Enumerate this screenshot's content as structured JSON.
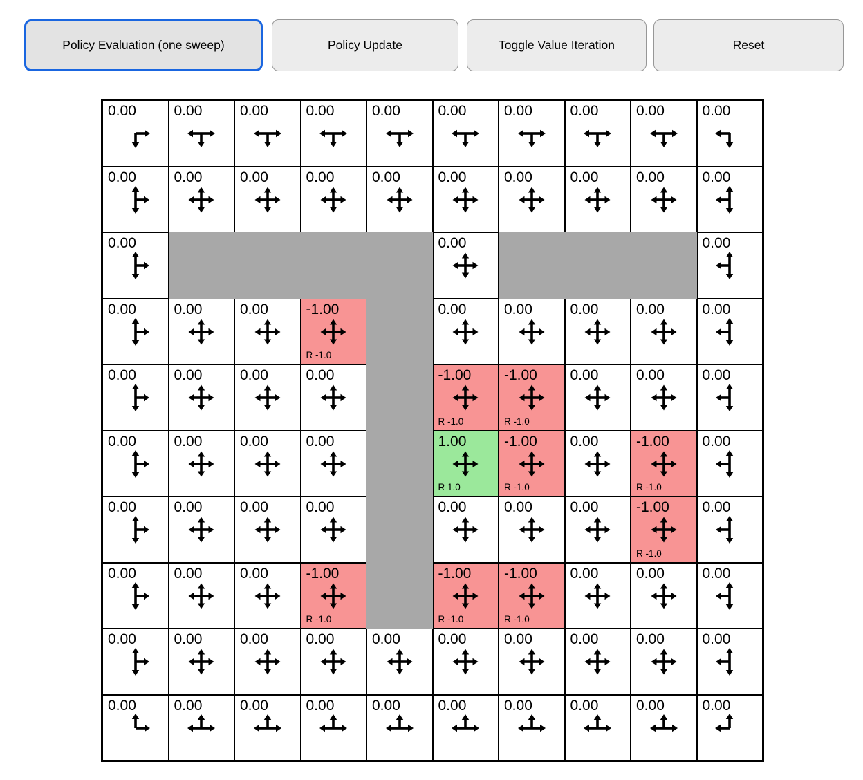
{
  "toolbar": {
    "buttons": [
      {
        "label": "Policy Evaluation (one sweep)",
        "active": true
      },
      {
        "label": "Policy Update",
        "active": false
      },
      {
        "label": "Toggle Value Iteration",
        "active": false
      },
      {
        "label": "Reset",
        "active": false
      }
    ]
  },
  "colors": {
    "accent_blue": "#1a66e0",
    "wall_gray": "#a8a8a8",
    "negative_red": "#f89494",
    "positive_green": "#9be89b",
    "button_bg": "#ececec",
    "button_bg_active": "#e3e3e3",
    "button_border": "#979797"
  },
  "grid": {
    "rows": 10,
    "cols": 10,
    "cells": [
      {
        "v": "0.00",
        "t": "n",
        "d": [
          "r",
          "d"
        ]
      },
      {
        "v": "0.00",
        "t": "n",
        "d": [
          "l",
          "r",
          "d"
        ]
      },
      {
        "v": "0.00",
        "t": "n",
        "d": [
          "l",
          "r",
          "d"
        ]
      },
      {
        "v": "0.00",
        "t": "n",
        "d": [
          "l",
          "r",
          "d"
        ]
      },
      {
        "v": "0.00",
        "t": "n",
        "d": [
          "l",
          "r",
          "d"
        ]
      },
      {
        "v": "0.00",
        "t": "n",
        "d": [
          "l",
          "r",
          "d"
        ]
      },
      {
        "v": "0.00",
        "t": "n",
        "d": [
          "l",
          "r",
          "d"
        ]
      },
      {
        "v": "0.00",
        "t": "n",
        "d": [
          "l",
          "r",
          "d"
        ]
      },
      {
        "v": "0.00",
        "t": "n",
        "d": [
          "l",
          "r",
          "d"
        ]
      },
      {
        "v": "0.00",
        "t": "n",
        "d": [
          "l",
          "d"
        ]
      },
      {
        "v": "0.00",
        "t": "n",
        "d": [
          "u",
          "d",
          "r"
        ]
      },
      {
        "v": "0.00",
        "t": "n",
        "d": [
          "u",
          "d",
          "l",
          "r"
        ]
      },
      {
        "v": "0.00",
        "t": "n",
        "d": [
          "u",
          "d",
          "l",
          "r"
        ]
      },
      {
        "v": "0.00",
        "t": "n",
        "d": [
          "u",
          "d",
          "l",
          "r"
        ]
      },
      {
        "v": "0.00",
        "t": "n",
        "d": [
          "u",
          "d",
          "l",
          "r"
        ]
      },
      {
        "v": "0.00",
        "t": "n",
        "d": [
          "u",
          "d",
          "l",
          "r"
        ]
      },
      {
        "v": "0.00",
        "t": "n",
        "d": [
          "u",
          "d",
          "l",
          "r"
        ]
      },
      {
        "v": "0.00",
        "t": "n",
        "d": [
          "u",
          "d",
          "l",
          "r"
        ]
      },
      {
        "v": "0.00",
        "t": "n",
        "d": [
          "u",
          "d",
          "l",
          "r"
        ]
      },
      {
        "v": "0.00",
        "t": "n",
        "d": [
          "u",
          "d",
          "l"
        ]
      },
      {
        "v": "0.00",
        "t": "n",
        "d": [
          "u",
          "d",
          "r"
        ]
      },
      {
        "t": "wall"
      },
      {
        "t": "wall"
      },
      {
        "t": "wall"
      },
      {
        "t": "wall"
      },
      {
        "v": "0.00",
        "t": "n",
        "d": [
          "u",
          "d",
          "l",
          "r"
        ]
      },
      {
        "t": "wall"
      },
      {
        "t": "wall"
      },
      {
        "t": "wall"
      },
      {
        "v": "0.00",
        "t": "n",
        "d": [
          "u",
          "d",
          "l"
        ]
      },
      {
        "v": "0.00",
        "t": "n",
        "d": [
          "u",
          "d",
          "r"
        ]
      },
      {
        "v": "0.00",
        "t": "n",
        "d": [
          "u",
          "d",
          "l",
          "r"
        ]
      },
      {
        "v": "0.00",
        "t": "n",
        "d": [
          "u",
          "d",
          "l",
          "r"
        ]
      },
      {
        "v": "-1.00",
        "t": "neg",
        "d": [
          "u",
          "d",
          "l",
          "r"
        ],
        "rw": "R -1.0"
      },
      {
        "t": "wall"
      },
      {
        "v": "0.00",
        "t": "n",
        "d": [
          "u",
          "d",
          "l",
          "r"
        ]
      },
      {
        "v": "0.00",
        "t": "n",
        "d": [
          "u",
          "d",
          "l",
          "r"
        ]
      },
      {
        "v": "0.00",
        "t": "n",
        "d": [
          "u",
          "d",
          "l",
          "r"
        ]
      },
      {
        "v": "0.00",
        "t": "n",
        "d": [
          "u",
          "d",
          "l",
          "r"
        ]
      },
      {
        "v": "0.00",
        "t": "n",
        "d": [
          "u",
          "d",
          "l"
        ]
      },
      {
        "v": "0.00",
        "t": "n",
        "d": [
          "u",
          "d",
          "r"
        ]
      },
      {
        "v": "0.00",
        "t": "n",
        "d": [
          "u",
          "d",
          "l",
          "r"
        ]
      },
      {
        "v": "0.00",
        "t": "n",
        "d": [
          "u",
          "d",
          "l",
          "r"
        ]
      },
      {
        "v": "0.00",
        "t": "n",
        "d": [
          "u",
          "d",
          "l",
          "r"
        ]
      },
      {
        "t": "wall"
      },
      {
        "v": "-1.00",
        "t": "neg",
        "d": [
          "u",
          "d",
          "l",
          "r"
        ],
        "rw": "R -1.0"
      },
      {
        "v": "-1.00",
        "t": "neg",
        "d": [
          "u",
          "d",
          "l",
          "r"
        ],
        "rw": "R -1.0"
      },
      {
        "v": "0.00",
        "t": "n",
        "d": [
          "u",
          "d",
          "l",
          "r"
        ]
      },
      {
        "v": "0.00",
        "t": "n",
        "d": [
          "u",
          "d",
          "l",
          "r"
        ]
      },
      {
        "v": "0.00",
        "t": "n",
        "d": [
          "u",
          "d",
          "l"
        ]
      },
      {
        "v": "0.00",
        "t": "n",
        "d": [
          "u",
          "d",
          "r"
        ]
      },
      {
        "v": "0.00",
        "t": "n",
        "d": [
          "u",
          "d",
          "l",
          "r"
        ]
      },
      {
        "v": "0.00",
        "t": "n",
        "d": [
          "u",
          "d",
          "l",
          "r"
        ]
      },
      {
        "v": "0.00",
        "t": "n",
        "d": [
          "u",
          "d",
          "l",
          "r"
        ]
      },
      {
        "t": "wall"
      },
      {
        "v": "1.00",
        "t": "pos",
        "d": [
          "u",
          "d",
          "l",
          "r"
        ],
        "rw": "R 1.0"
      },
      {
        "v": "-1.00",
        "t": "neg",
        "d": [
          "u",
          "d",
          "l",
          "r"
        ],
        "rw": "R -1.0"
      },
      {
        "v": "0.00",
        "t": "n",
        "d": [
          "u",
          "d",
          "l",
          "r"
        ]
      },
      {
        "v": "-1.00",
        "t": "neg",
        "d": [
          "u",
          "d",
          "l",
          "r"
        ],
        "rw": "R -1.0"
      },
      {
        "v": "0.00",
        "t": "n",
        "d": [
          "u",
          "d",
          "l"
        ]
      },
      {
        "v": "0.00",
        "t": "n",
        "d": [
          "u",
          "d",
          "r"
        ]
      },
      {
        "v": "0.00",
        "t": "n",
        "d": [
          "u",
          "d",
          "l",
          "r"
        ]
      },
      {
        "v": "0.00",
        "t": "n",
        "d": [
          "u",
          "d",
          "l",
          "r"
        ]
      },
      {
        "v": "0.00",
        "t": "n",
        "d": [
          "u",
          "d",
          "l",
          "r"
        ]
      },
      {
        "t": "wall"
      },
      {
        "v": "0.00",
        "t": "n",
        "d": [
          "u",
          "d",
          "l",
          "r"
        ]
      },
      {
        "v": "0.00",
        "t": "n",
        "d": [
          "u",
          "d",
          "l",
          "r"
        ]
      },
      {
        "v": "0.00",
        "t": "n",
        "d": [
          "u",
          "d",
          "l",
          "r"
        ]
      },
      {
        "v": "-1.00",
        "t": "neg",
        "d": [
          "u",
          "d",
          "l",
          "r"
        ],
        "rw": "R -1.0"
      },
      {
        "v": "0.00",
        "t": "n",
        "d": [
          "u",
          "d",
          "l"
        ]
      },
      {
        "v": "0.00",
        "t": "n",
        "d": [
          "u",
          "d",
          "r"
        ]
      },
      {
        "v": "0.00",
        "t": "n",
        "d": [
          "u",
          "d",
          "l",
          "r"
        ]
      },
      {
        "v": "0.00",
        "t": "n",
        "d": [
          "u",
          "d",
          "l",
          "r"
        ]
      },
      {
        "v": "-1.00",
        "t": "neg",
        "d": [
          "u",
          "d",
          "l",
          "r"
        ],
        "rw": "R -1.0"
      },
      {
        "t": "wall"
      },
      {
        "v": "-1.00",
        "t": "neg",
        "d": [
          "u",
          "d",
          "l",
          "r"
        ],
        "rw": "R -1.0"
      },
      {
        "v": "-1.00",
        "t": "neg",
        "d": [
          "u",
          "d",
          "l",
          "r"
        ],
        "rw": "R -1.0"
      },
      {
        "v": "0.00",
        "t": "n",
        "d": [
          "u",
          "d",
          "l",
          "r"
        ]
      },
      {
        "v": "0.00",
        "t": "n",
        "d": [
          "u",
          "d",
          "l",
          "r"
        ]
      },
      {
        "v": "0.00",
        "t": "n",
        "d": [
          "u",
          "d",
          "l"
        ]
      },
      {
        "v": "0.00",
        "t": "n",
        "d": [
          "u",
          "d",
          "r"
        ]
      },
      {
        "v": "0.00",
        "t": "n",
        "d": [
          "u",
          "d",
          "l",
          "r"
        ]
      },
      {
        "v": "0.00",
        "t": "n",
        "d": [
          "u",
          "d",
          "l",
          "r"
        ]
      },
      {
        "v": "0.00",
        "t": "n",
        "d": [
          "u",
          "d",
          "l",
          "r"
        ]
      },
      {
        "v": "0.00",
        "t": "n",
        "d": [
          "u",
          "d",
          "l",
          "r"
        ]
      },
      {
        "v": "0.00",
        "t": "n",
        "d": [
          "u",
          "d",
          "l",
          "r"
        ]
      },
      {
        "v": "0.00",
        "t": "n",
        "d": [
          "u",
          "d",
          "l",
          "r"
        ]
      },
      {
        "v": "0.00",
        "t": "n",
        "d": [
          "u",
          "d",
          "l",
          "r"
        ]
      },
      {
        "v": "0.00",
        "t": "n",
        "d": [
          "u",
          "d",
          "l",
          "r"
        ]
      },
      {
        "v": "0.00",
        "t": "n",
        "d": [
          "u",
          "d",
          "l"
        ]
      },
      {
        "v": "0.00",
        "t": "n",
        "d": [
          "u",
          "r"
        ]
      },
      {
        "v": "0.00",
        "t": "n",
        "d": [
          "l",
          "r",
          "u"
        ]
      },
      {
        "v": "0.00",
        "t": "n",
        "d": [
          "l",
          "r",
          "u"
        ]
      },
      {
        "v": "0.00",
        "t": "n",
        "d": [
          "l",
          "r",
          "u"
        ]
      },
      {
        "v": "0.00",
        "t": "n",
        "d": [
          "l",
          "r",
          "u"
        ]
      },
      {
        "v": "0.00",
        "t": "n",
        "d": [
          "l",
          "r",
          "u"
        ]
      },
      {
        "v": "0.00",
        "t": "n",
        "d": [
          "l",
          "r",
          "u"
        ]
      },
      {
        "v": "0.00",
        "t": "n",
        "d": [
          "l",
          "r",
          "u"
        ]
      },
      {
        "v": "0.00",
        "t": "n",
        "d": [
          "l",
          "r",
          "u"
        ]
      },
      {
        "v": "0.00",
        "t": "n",
        "d": [
          "l",
          "u"
        ]
      }
    ]
  }
}
